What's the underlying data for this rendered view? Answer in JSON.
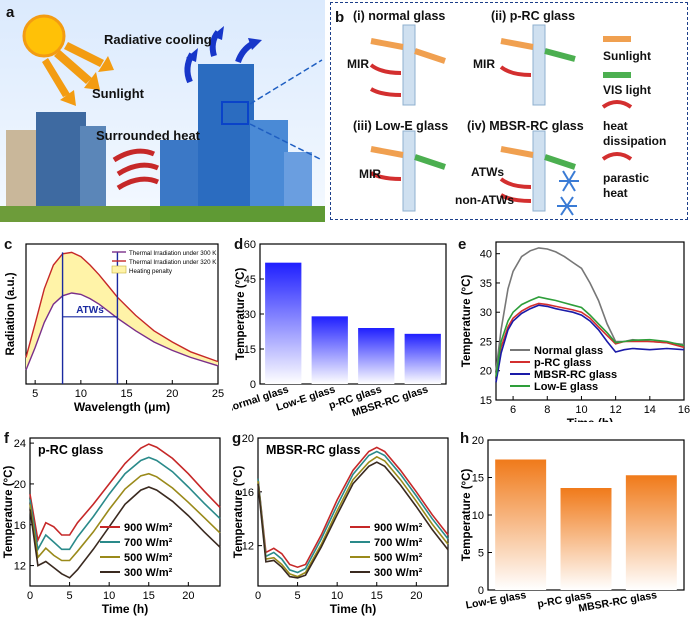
{
  "panels": {
    "a": {
      "letter": "a",
      "radiative_cooling": "Radiative cooling",
      "sunlight": "Sunlight",
      "surrounded_heat": "Surrounded heat"
    },
    "b": {
      "letter": "b",
      "normal": "(i) normal glass",
      "prc": "(ii) p-RC glass",
      "lowe": "(iii) Low-E glass",
      "mbsr": "(iv) MBSR-RC glass",
      "mir": "MIR",
      "atws": "ATWs",
      "non_atws": "non-ATWs",
      "legend": [
        "Sunlight",
        "VIS light",
        "heat dissipation",
        "parastic heat"
      ]
    },
    "c": {
      "letter": "c"
    },
    "d": {
      "letter": "d"
    },
    "e": {
      "letter": "e"
    },
    "f": {
      "letter": "f"
    },
    "g": {
      "letter": "g"
    },
    "h": {
      "letter": "h"
    }
  },
  "chart_data": [
    {
      "id": "c",
      "type": "area",
      "xlabel": "Wavelength (μm)",
      "ylabel": "Radiation (a.u.)",
      "xlim": [
        4,
        25
      ],
      "xticks": [
        5,
        10,
        15,
        20,
        25
      ],
      "legend": [
        "Thermal Irradiation under 300 K",
        "Thermal Irradiation under 320 K",
        "Heating penalty"
      ],
      "annotation": "ATWs",
      "atw_range": [
        8,
        14
      ],
      "series": [
        {
          "name": "Thermal Irradiation under 300 K",
          "x": [
            4,
            5,
            6,
            7,
            8,
            9,
            10,
            11,
            12,
            13,
            14,
            16,
            18,
            20,
            22,
            25
          ],
          "values": [
            0.1,
            0.26,
            0.44,
            0.57,
            0.63,
            0.65,
            0.64,
            0.61,
            0.57,
            0.52,
            0.47,
            0.38,
            0.3,
            0.24,
            0.19,
            0.13
          ],
          "color": "#7a2f8a"
        },
        {
          "name": "Thermal Irradiation under 320 K",
          "x": [
            4,
            5,
            6,
            7,
            8,
            9,
            10,
            11,
            12,
            13,
            14,
            16,
            18,
            20,
            22,
            25
          ],
          "values": [
            0.19,
            0.43,
            0.68,
            0.85,
            0.93,
            0.94,
            0.91,
            0.85,
            0.78,
            0.7,
            0.62,
            0.49,
            0.38,
            0.3,
            0.23,
            0.16
          ],
          "color": "#c62828"
        }
      ]
    },
    {
      "id": "d",
      "type": "bar",
      "ylabel": "Temperature (°C)",
      "ylim": [
        0,
        60
      ],
      "yticks": [
        0,
        15,
        30,
        45,
        60
      ],
      "categories": [
        "Normal glass",
        "Low-E glass",
        "p-RC glass",
        "MBSR-RC glass"
      ],
      "values": [
        52,
        29,
        24,
        21.5
      ],
      "color": "#1f1fff"
    },
    {
      "id": "e",
      "type": "line",
      "xlabel": "Time (h)",
      "ylabel": "Temperature (°C)",
      "xlim": [
        5,
        16
      ],
      "ylim": [
        15,
        42
      ],
      "xticks": [
        6,
        8,
        10,
        12,
        14,
        16
      ],
      "yticks": [
        15,
        20,
        25,
        30,
        35,
        40
      ],
      "series": [
        {
          "name": "Normal glass",
          "color": "#777777",
          "x": [
            5,
            5.3,
            5.7,
            6,
            6.5,
            7,
            7.5,
            8,
            8.5,
            9,
            9.5,
            10,
            10.5,
            11,
            11.5,
            12,
            12.5,
            13,
            14,
            15,
            16
          ],
          "values": [
            20,
            27,
            34,
            37,
            39.5,
            40.5,
            41,
            40.8,
            40.3,
            39.5,
            38.5,
            37.5,
            35,
            32,
            28,
            25,
            25,
            25.3,
            25,
            24.8,
            24.5
          ]
        },
        {
          "name": "p-RC glass",
          "color": "#d32f2f",
          "x": [
            5,
            5.3,
            5.7,
            6,
            6.5,
            7,
            7.5,
            8,
            8.5,
            9,
            9.5,
            10,
            10.5,
            11,
            11.5,
            12,
            12.5,
            13,
            14,
            15,
            16
          ],
          "values": [
            19,
            24,
            27.5,
            29,
            30.2,
            31,
            31.5,
            31.3,
            31,
            30.7,
            30.4,
            30,
            29,
            27.5,
            26,
            24.6,
            25,
            25,
            25,
            24.8,
            24
          ]
        },
        {
          "name": "MBSR-RC glass",
          "color": "#1a1aa8",
          "x": [
            5,
            5.3,
            5.7,
            6,
            6.5,
            7,
            7.5,
            8,
            8.5,
            9,
            9.5,
            10,
            10.5,
            11,
            11.5,
            12,
            12.5,
            13,
            14,
            15,
            16
          ],
          "values": [
            18,
            23,
            27,
            28.5,
            29.8,
            30.6,
            31.2,
            31,
            30.6,
            30.3,
            30,
            29.5,
            28.5,
            27,
            25,
            23.2,
            23.6,
            23.8,
            23.6,
            23.8,
            23.6
          ]
        },
        {
          "name": "Low-E glass",
          "color": "#2e9e3a",
          "x": [
            5,
            5.3,
            5.7,
            6,
            6.5,
            7,
            7.5,
            8,
            8.5,
            9,
            9.5,
            10,
            10.5,
            11,
            11.5,
            12,
            12.5,
            13,
            14,
            15,
            16
          ],
          "values": [
            19,
            25,
            28.5,
            30,
            31.3,
            32,
            32.6,
            32.3,
            32,
            31.6,
            31.2,
            30.8,
            29.5,
            28,
            26.5,
            24.8,
            25,
            25.2,
            25.3,
            25,
            24.3
          ]
        }
      ]
    },
    {
      "id": "f",
      "type": "line",
      "title": "p-RC glass",
      "xlabel": "Time (h)",
      "ylabel": "Temperature (°C)",
      "xlim": [
        0,
        24
      ],
      "ylim": [
        10,
        24.5
      ],
      "xticks": [
        0,
        5,
        10,
        15,
        20
      ],
      "yticks": [
        12,
        16,
        20,
        24
      ],
      "series": [
        {
          "name": "900 W/m²",
          "color": "#c62828",
          "x": [
            0,
            1,
            2,
            3,
            4,
            5,
            6,
            8,
            10,
            12,
            14,
            15,
            16,
            18,
            20,
            22,
            24
          ],
          "values": [
            19,
            14.5,
            16.2,
            15.8,
            15,
            15,
            16.2,
            18,
            20,
            22,
            23.5,
            23.9,
            23.6,
            22.5,
            21,
            19.3,
            17.7
          ]
        },
        {
          "name": "700 W/m²",
          "color": "#2a8a8a",
          "x": [
            0,
            1,
            2,
            3,
            4,
            5,
            6,
            8,
            10,
            12,
            14,
            15,
            16,
            18,
            20,
            22,
            24
          ],
          "values": [
            18.5,
            13.6,
            15,
            14.3,
            13.6,
            13.6,
            14.8,
            16.8,
            19,
            21,
            22.3,
            22.6,
            22.3,
            21.2,
            19.7,
            18.1,
            16.6
          ]
        },
        {
          "name": "500 W/m²",
          "color": "#9a8a1a",
          "x": [
            0,
            1,
            2,
            3,
            4,
            5,
            6,
            8,
            10,
            12,
            14,
            15,
            16,
            18,
            20,
            22,
            24
          ],
          "values": [
            18,
            12.8,
            13.7,
            13,
            12.5,
            12.5,
            13.4,
            15.3,
            17.5,
            19.5,
            20.8,
            21,
            20.7,
            19.6,
            18.2,
            16.7,
            15.2
          ]
        },
        {
          "name": "300 W/m²",
          "color": "#3a2a20",
          "x": [
            0,
            1,
            2,
            3,
            4,
            5,
            6,
            8,
            10,
            12,
            14,
            15,
            16,
            18,
            20,
            22,
            24
          ],
          "values": [
            17.5,
            12,
            12.4,
            11.8,
            11.2,
            10.8,
            11.6,
            13.6,
            15.8,
            18,
            19.4,
            19.7,
            19.4,
            18.3,
            16.9,
            15.3,
            13.8
          ]
        }
      ]
    },
    {
      "id": "g",
      "type": "line",
      "title": "MBSR-RC glass",
      "xlabel": "Time (h)",
      "ylabel": "Temperature (°C)",
      "xlim": [
        0,
        24
      ],
      "ylim": [
        9,
        20
      ],
      "xticks": [
        0,
        5,
        10,
        15,
        20
      ],
      "yticks": [
        12,
        16,
        20
      ],
      "series": [
        {
          "name": "900 W/m²",
          "color": "#c62828",
          "x": [
            0,
            1,
            2,
            3,
            4,
            5,
            6,
            8,
            10,
            12,
            14,
            15,
            16,
            18,
            20,
            22,
            24
          ],
          "values": [
            17,
            11.5,
            11.8,
            11.4,
            10.6,
            10.4,
            10.6,
            12.8,
            15.4,
            17.6,
            19,
            19.3,
            19,
            17.6,
            16,
            14.3,
            12.8
          ]
        },
        {
          "name": "700 W/m²",
          "color": "#2a8a8a",
          "x": [
            0,
            1,
            2,
            3,
            4,
            5,
            6,
            8,
            10,
            12,
            14,
            15,
            16,
            18,
            20,
            22,
            24
          ],
          "values": [
            17,
            11.2,
            11.5,
            11,
            10.2,
            10,
            10.3,
            12.5,
            15,
            17.3,
            18.7,
            19,
            18.7,
            17.3,
            15.7,
            14,
            12.5
          ]
        },
        {
          "name": "500 W/m²",
          "color": "#9a8a1a",
          "x": [
            0,
            1,
            2,
            3,
            4,
            5,
            6,
            8,
            10,
            12,
            14,
            15,
            16,
            18,
            20,
            22,
            24
          ],
          "values": [
            16.8,
            11,
            11.1,
            10.6,
            9.9,
            9.7,
            10,
            12.1,
            14.6,
            16.9,
            18.2,
            18.6,
            18.3,
            16.9,
            15.3,
            13.6,
            12.1
          ]
        },
        {
          "name": "300 W/m²",
          "color": "#3a2a20",
          "x": [
            0,
            1,
            2,
            3,
            4,
            5,
            6,
            8,
            10,
            12,
            14,
            15,
            16,
            18,
            20,
            22,
            24
          ],
          "values": [
            16.6,
            10.8,
            10.9,
            10.4,
            9.7,
            9.6,
            9.8,
            11.9,
            14.3,
            16.6,
            17.9,
            18.2,
            17.9,
            16.5,
            14.9,
            13.2,
            11.7
          ]
        }
      ]
    },
    {
      "id": "h",
      "type": "bar",
      "ylabel": "Temperature (°C)",
      "ylim": [
        0,
        20
      ],
      "yticks": [
        0,
        5,
        10,
        15,
        20
      ],
      "categories": [
        "Low-E glass",
        "p-RC glass",
        "MBSR-RC glass"
      ],
      "values": [
        17.4,
        13.6,
        15.3
      ],
      "color": "#f07a1a"
    }
  ]
}
